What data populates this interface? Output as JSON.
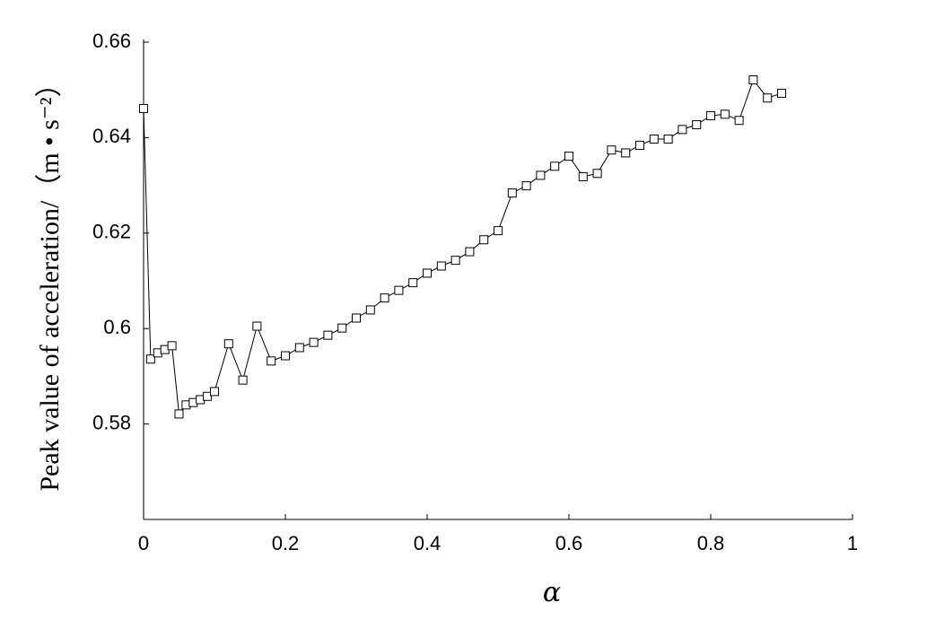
{
  "chart_data": {
    "type": "line",
    "x_label": "α",
    "y_label": "Peak value of acceleration/（m • s⁻²）",
    "x": [
      0,
      0.01,
      0.02,
      0.03,
      0.04,
      0.05,
      0.06,
      0.07,
      0.08,
      0.09,
      0.1,
      0.12,
      0.14,
      0.16,
      0.18,
      0.2,
      0.22,
      0.24,
      0.26,
      0.28,
      0.3,
      0.32,
      0.34,
      0.36,
      0.38,
      0.4,
      0.42,
      0.44,
      0.46,
      0.48,
      0.5,
      0.52,
      0.54,
      0.56,
      0.58,
      0.6,
      0.62,
      0.64,
      0.66,
      0.68,
      0.7,
      0.72,
      0.74,
      0.76,
      0.78,
      0.8,
      0.82,
      0.84,
      0.86,
      0.88,
      0.9
    ],
    "series": [
      {
        "color": "#000000",
        "values": [
          0.6461,
          0.5936,
          0.5949,
          0.5956,
          0.5964,
          0.5821,
          0.584,
          0.5845,
          0.5851,
          0.5858,
          0.5868,
          0.5968,
          0.5892,
          0.6005,
          0.5932,
          0.5943,
          0.596,
          0.5971,
          0.5986,
          0.6001,
          0.6022,
          0.6039,
          0.6064,
          0.608,
          0.6096,
          0.6116,
          0.6131,
          0.6143,
          0.6161,
          0.6186,
          0.6205,
          0.6284,
          0.6299,
          0.6321,
          0.634,
          0.6361,
          0.6318,
          0.6325,
          0.6374,
          0.6368,
          0.6384,
          0.6397,
          0.6397,
          0.6417,
          0.6427,
          0.6446,
          0.6449,
          0.6436,
          0.6521,
          0.6483,
          0.6493
        ]
      }
    ],
    "xlim": [
      0,
      1
    ],
    "xticks": [
      0,
      0.2,
      0.4,
      0.6,
      0.8,
      1
    ],
    "ylim": [
      0.56,
      0.66
    ],
    "yticks": [
      0.58,
      0.6,
      0.62,
      0.64,
      0.66
    ],
    "marker": "square",
    "grid": false
  }
}
